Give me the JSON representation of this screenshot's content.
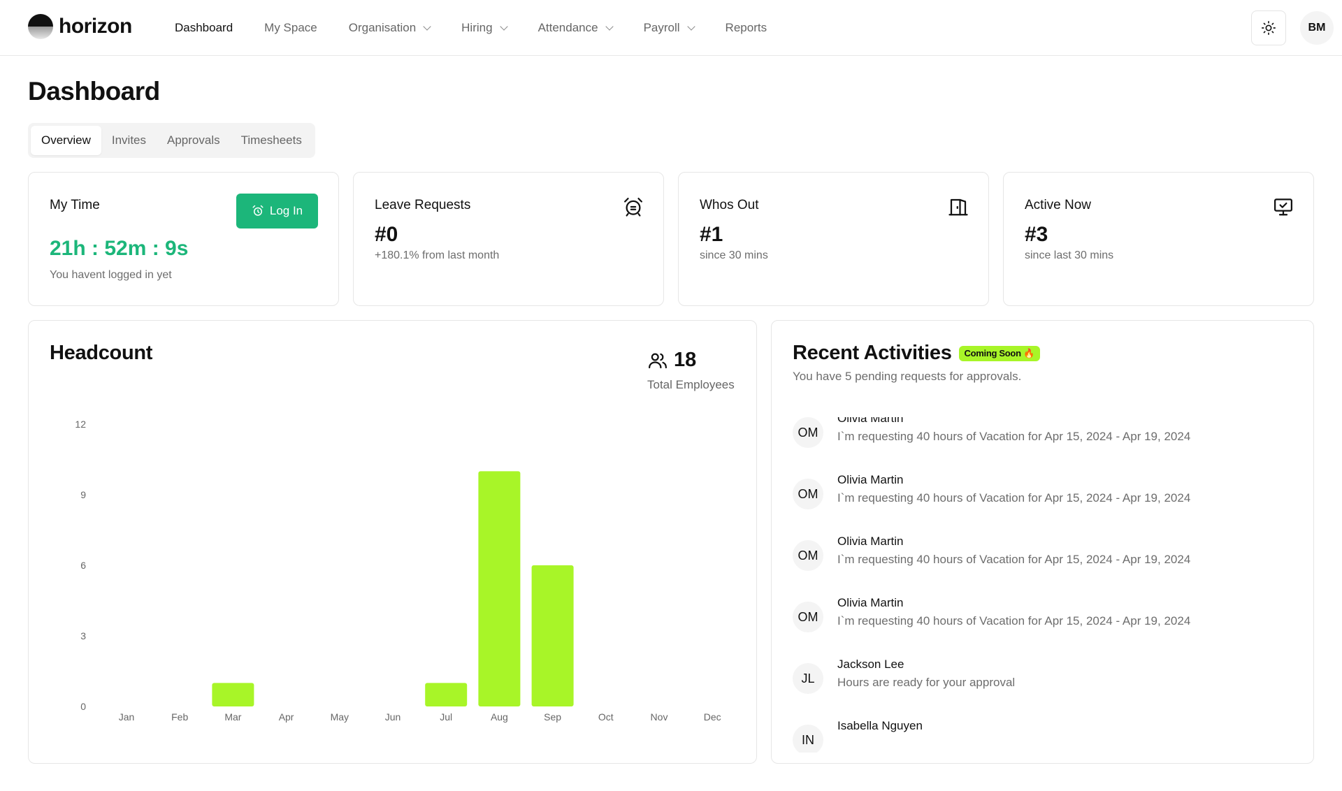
{
  "app": {
    "brand": "horizon"
  },
  "nav": {
    "items": [
      {
        "label": "Dashboard",
        "dropdown": false,
        "active": true
      },
      {
        "label": "My Space",
        "dropdown": false
      },
      {
        "label": "Organisation",
        "dropdown": true
      },
      {
        "label": "Hiring",
        "dropdown": true
      },
      {
        "label": "Attendance",
        "dropdown": true
      },
      {
        "label": "Payroll",
        "dropdown": true
      },
      {
        "label": "Reports",
        "dropdown": false
      }
    ],
    "user_initials": "BM"
  },
  "page": {
    "title": "Dashboard"
  },
  "tabs": [
    {
      "label": "Overview",
      "active": true
    },
    {
      "label": "Invites"
    },
    {
      "label": "Approvals"
    },
    {
      "label": "Timesheets"
    }
  ],
  "my_time": {
    "title": "My Time",
    "button_label": "Log In",
    "timer": "21h : 52m : 9s",
    "status": "You havent logged in yet"
  },
  "stats": [
    {
      "title": "Leave Requests",
      "value": "#0",
      "sub": "+180.1% from last month",
      "icon": "alarm-icon"
    },
    {
      "title": "Whos Out",
      "value": "#1",
      "sub": "since 30 mins",
      "icon": "door-icon"
    },
    {
      "title": "Active Now",
      "value": "#3",
      "sub": "since last 30 mins",
      "icon": "monitor-check-icon"
    }
  ],
  "headcount": {
    "title": "Headcount",
    "total": "18",
    "total_label": "Total Employees"
  },
  "chart_data": {
    "type": "bar",
    "title": "Headcount",
    "categories": [
      "Jan",
      "Feb",
      "Mar",
      "Apr",
      "May",
      "Jun",
      "Jul",
      "Aug",
      "Sep",
      "Oct",
      "Nov",
      "Dec"
    ],
    "values": [
      0,
      0,
      1,
      0,
      0,
      0,
      1,
      10,
      6,
      0,
      0,
      0
    ],
    "yticks": [
      0,
      3,
      6,
      9,
      12
    ],
    "ylim": [
      0,
      12
    ],
    "grid": false,
    "bar_color": "#a8f528"
  },
  "activities": {
    "title": "Recent Activities",
    "badge": "Coming Soon 🔥",
    "subtitle": "You have 5 pending requests for approvals.",
    "items": [
      {
        "initials": "OM",
        "name": "Olivia Martin",
        "desc": "I`m requesting 40 hours of Vacation for Apr 15, 2024 - Apr 19, 2024"
      },
      {
        "initials": "OM",
        "name": "Olivia Martin",
        "desc": "I`m requesting 40 hours of Vacation for Apr 15, 2024 - Apr 19, 2024"
      },
      {
        "initials": "OM",
        "name": "Olivia Martin",
        "desc": "I`m requesting 40 hours of Vacation for Apr 15, 2024 - Apr 19, 2024"
      },
      {
        "initials": "OM",
        "name": "Olivia Martin",
        "desc": "I`m requesting 40 hours of Vacation for Apr 15, 2024 - Apr 19, 2024"
      },
      {
        "initials": "JL",
        "name": "Jackson Lee",
        "desc": "Hours are ready for your approval"
      },
      {
        "initials": "IN",
        "name": "Isabella Nguyen",
        "desc": ""
      }
    ]
  },
  "colors": {
    "accent_green": "#1cb67a",
    "lime": "#a8f528",
    "border": "#e6e6e6"
  }
}
